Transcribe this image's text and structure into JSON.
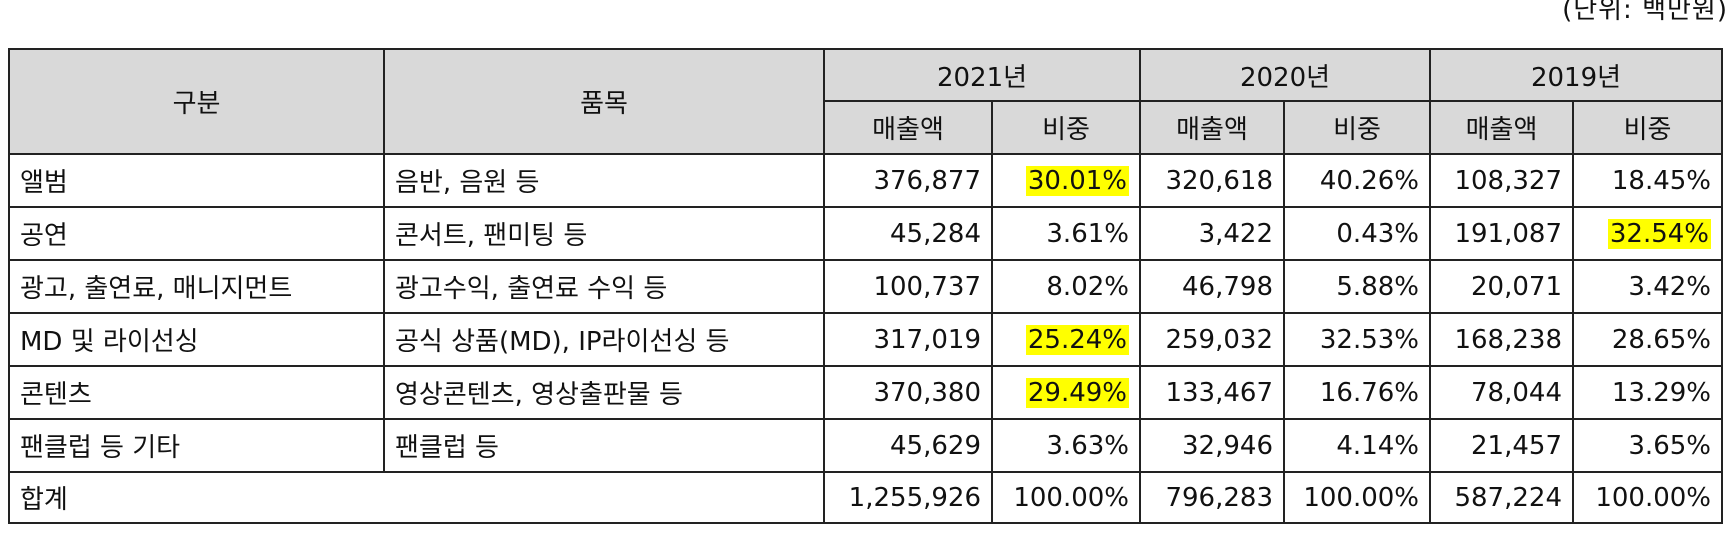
{
  "unit_note": "(단위: 백만원)",
  "headers": {
    "category": "구분",
    "item": "품목",
    "years": [
      "2021년",
      "2020년",
      "2019년"
    ],
    "sales": "매출액",
    "share": "비중"
  },
  "rows": [
    {
      "category": "앨범",
      "item": "음반, 음원 등",
      "v2021": "376,877",
      "s2021": "30.01%",
      "v2020": "320,618",
      "s2020": "40.26%",
      "v2019": "108,327",
      "s2019": "18.45%"
    },
    {
      "category": "공연",
      "item": "콘서트, 팬미팅 등",
      "v2021": "45,284",
      "s2021": "3.61%",
      "v2020": "3,422",
      "s2020": "0.43%",
      "v2019": "191,087",
      "s2019": "32.54%"
    },
    {
      "category": "광고, 출연료, 매니지먼트",
      "item": "광고수익, 출연료 수익 등",
      "v2021": "100,737",
      "s2021": "8.02%",
      "v2020": "46,798",
      "s2020": "5.88%",
      "v2019": "20,071",
      "s2019": "3.42%"
    },
    {
      "category": "MD 및 라이선싱",
      "item": "공식 상품(MD), IP라이선싱 등",
      "v2021": "317,019",
      "s2021": "25.24%",
      "v2020": "259,032",
      "s2020": "32.53%",
      "v2019": "168,238",
      "s2019": "28.65%"
    },
    {
      "category": "콘텐츠",
      "item": "영상콘텐츠, 영상출판물 등",
      "v2021": "370,380",
      "s2021": "29.49%",
      "v2020": "133,467",
      "s2020": "16.76%",
      "v2019": "78,044",
      "s2019": "13.29%"
    },
    {
      "category": "팬클럽 등 기타",
      "item": "팬클럽 등",
      "v2021": "45,629",
      "s2021": "3.63%",
      "v2020": "32,946",
      "s2020": "4.14%",
      "v2019": "21,457",
      "s2019": "3.65%"
    }
  ],
  "total": {
    "label": "합계",
    "v2021": "1,255,926",
    "s2021": "100.00%",
    "v2020": "796,283",
    "s2020": "100.00%",
    "v2019": "587,224",
    "s2019": "100.00%"
  },
  "highlight_color": "#ffff00"
}
